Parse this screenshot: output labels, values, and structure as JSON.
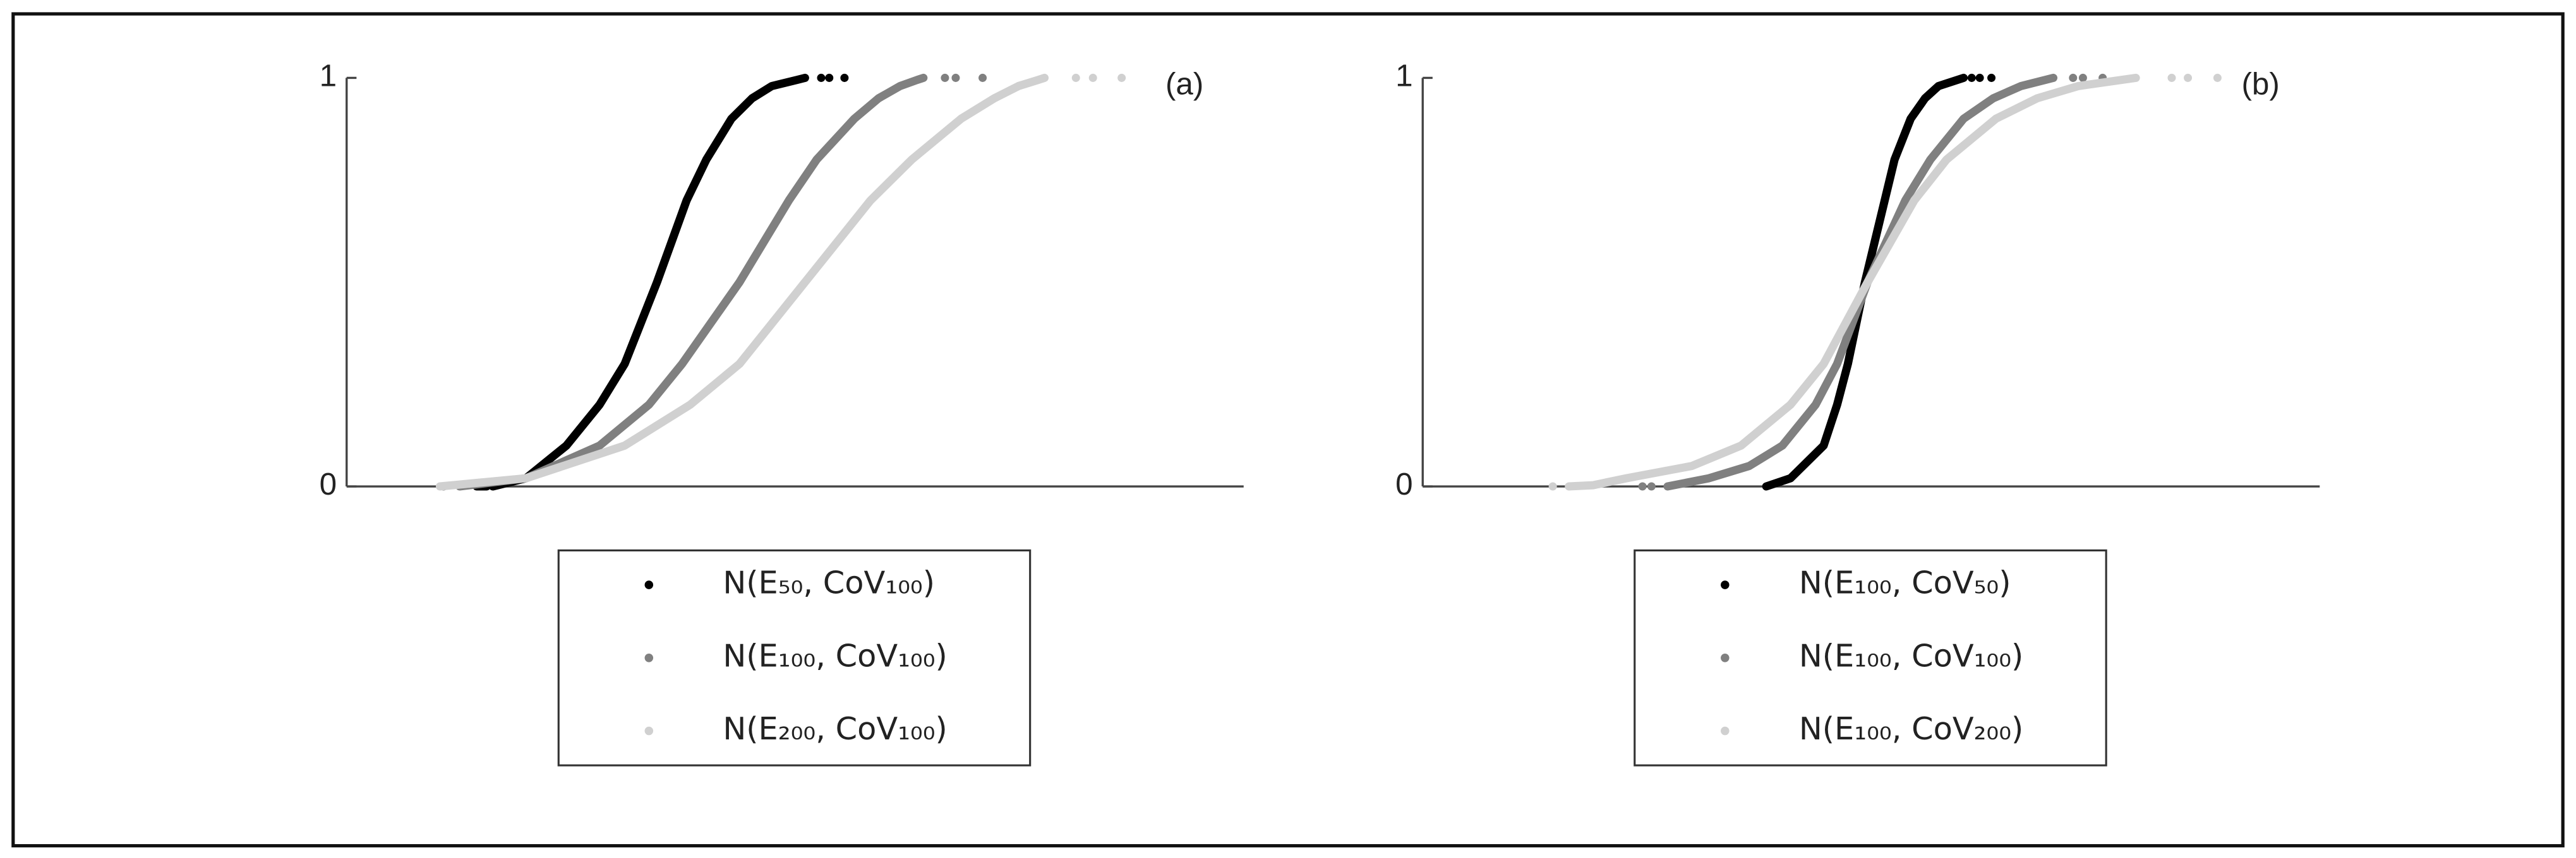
{
  "chart_data": [
    {
      "type": "scatter",
      "label": "(a)",
      "xlim": [
        0,
        100
      ],
      "ylim": [
        0,
        1
      ],
      "yticks": [
        0,
        1
      ],
      "legend": "below",
      "series": [
        {
          "name": "N(E₅₀, CoV₁₀₀)",
          "color": "#000000",
          "x": [
            14.5,
            15.6,
            null,
            16.3,
            20,
            24.5,
            28.2,
            31,
            34.6,
            37.9,
            40.1,
            42.9,
            45.2,
            47.4,
            50.2,
            51.1,
            null,
            52.9,
            null,
            53.8,
            null,
            55.5
          ],
          "values": [
            0,
            0,
            null,
            0,
            0.02,
            0.1,
            0.2,
            0.3,
            0.5,
            0.7,
            0.8,
            0.9,
            0.95,
            0.98,
            0.995,
            1,
            null,
            1,
            null,
            1,
            null,
            1
          ]
        },
        {
          "name": "N(E₁₀₀, CoV₁₀₀)",
          "color": "#808080",
          "x": [
            10.8,
            null,
            12.6,
            20,
            28.2,
            33.7,
            37.4,
            43.8,
            49.3,
            52.4,
            56.6,
            59.3,
            61.7,
            63.6,
            64.3,
            null,
            66.7,
            null,
            67.9,
            null,
            70.9
          ],
          "values": [
            0,
            null,
            0,
            0.02,
            0.1,
            0.2,
            0.3,
            0.5,
            0.7,
            0.8,
            0.9,
            0.95,
            0.98,
            0.995,
            1,
            null,
            1,
            null,
            1,
            null,
            1
          ]
        },
        {
          "name": "N(E₂₀₀, CoV₁₀₀)",
          "color": "#d0d0d0",
          "x": [
            10.4,
            20,
            31,
            38.3,
            43.8,
            51.1,
            58.4,
            63,
            68.5,
            72.2,
            74.9,
            77.1,
            77.8,
            null,
            81.3,
            null,
            83.2,
            null,
            86.4
          ],
          "values": [
            0,
            0.02,
            0.1,
            0.2,
            0.3,
            0.5,
            0.7,
            0.8,
            0.9,
            0.95,
            0.98,
            0.995,
            1,
            null,
            1,
            null,
            1,
            null,
            1
          ]
        }
      ]
    },
    {
      "type": "scatter",
      "label": "(b)",
      "xlim": [
        0,
        100
      ],
      "ylim": [
        0,
        1
      ],
      "yticks": [
        0,
        1
      ],
      "legend": "below",
      "series": [
        {
          "name": "N(E₁₀₀, CoV₅₀)",
          "color": "#000000",
          "x": [
            38.3,
            41,
            44.7,
            46.2,
            47.4,
            49.3,
            51.5,
            52.6,
            54.4,
            56,
            57.5,
            60.3,
            null,
            61.2,
            null,
            62.1,
            null,
            63.4
          ],
          "values": [
            0,
            0.02,
            0.1,
            0.2,
            0.3,
            0.5,
            0.7,
            0.8,
            0.9,
            0.95,
            0.98,
            1,
            null,
            1,
            null,
            1,
            null,
            1
          ]
        },
        {
          "name": "N(E₁₀₀, CoV₁₀₀)",
          "color": "#808080",
          "x": [
            24.5,
            null,
            25.5,
            null,
            27.3,
            31.9,
            36.4,
            40.1,
            43.8,
            46.2,
            49.6,
            53.8,
            56.6,
            60.3,
            63.6,
            66.7,
            70.3,
            null,
            72.5,
            null,
            73.6,
            null,
            75.8
          ],
          "values": [
            0,
            null,
            0,
            null,
            0,
            0.02,
            0.05,
            0.1,
            0.2,
            0.3,
            0.5,
            0.7,
            0.8,
            0.9,
            0.95,
            0.98,
            1,
            null,
            1,
            null,
            1,
            null,
            1
          ]
        },
        {
          "name": "N(E₁₀₀, CoV₂₀₀)",
          "color": "#d0d0d0",
          "x": [
            14.5,
            null,
            16.3,
            19,
            22.7,
            30,
            35.5,
            41,
            44.7,
            49.6,
            54.8,
            58.4,
            63.9,
            68.5,
            73.1,
            79.5,
            null,
            83.5,
            null,
            85.3,
            null,
            88.6
          ],
          "values": [
            0,
            null,
            0,
            0.003,
            0.02,
            0.05,
            0.1,
            0.2,
            0.3,
            0.5,
            0.7,
            0.8,
            0.9,
            0.95,
            0.98,
            1,
            null,
            1,
            null,
            1,
            null,
            1
          ]
        }
      ]
    }
  ]
}
